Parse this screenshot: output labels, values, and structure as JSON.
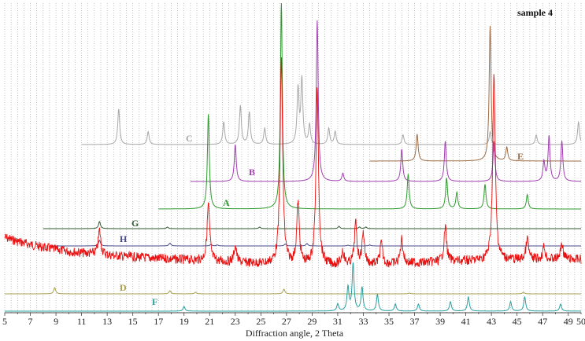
{
  "chart_data": {
    "type": "line",
    "title": "sample 4",
    "xlabel": "Diffraction angle, 2 Theta",
    "ylabel": "",
    "xlim": [
      5,
      50
    ],
    "xticks": [
      5,
      7,
      9,
      11,
      13,
      15,
      17,
      19,
      21,
      23,
      25,
      27,
      29,
      31,
      33,
      35,
      37,
      39,
      41,
      43,
      45,
      47,
      49,
      50
    ],
    "grid": "vertical dotted gridlines every 0.5 degree",
    "series": [
      {
        "name": "C",
        "color": "#a8a8a8",
        "x_range": [
          11,
          50
        ],
        "peaks": [
          [
            13.9,
            0.55
          ],
          [
            16.2,
            0.2
          ],
          [
            22.1,
            0.35
          ],
          [
            23.4,
            0.6
          ],
          [
            24.1,
            0.5
          ],
          [
            25.3,
            0.25
          ],
          [
            27.9,
            0.85
          ],
          [
            28.2,
            1.0
          ],
          [
            28.8,
            0.3
          ],
          [
            30.3,
            0.25
          ],
          [
            30.8,
            0.2
          ],
          [
            36.1,
            0.15
          ],
          [
            42.9,
            0.2
          ],
          [
            46.5,
            0.15
          ],
          [
            49.8,
            0.35
          ]
        ]
      },
      {
        "name": "E",
        "color": "#9b6b45",
        "x_range": [
          33.5,
          50
        ],
        "peaks": [
          [
            37.2,
            0.2
          ],
          [
            42.9,
            1.0
          ],
          [
            44.2,
            0.1
          ]
        ]
      },
      {
        "name": "B",
        "color": "#a040b0",
        "x_range": [
          19.5,
          50
        ],
        "peaks": [
          [
            23.0,
            0.23
          ],
          [
            29.4,
            1.0
          ],
          [
            31.4,
            0.05
          ],
          [
            36.0,
            0.2
          ],
          [
            39.4,
            0.25
          ],
          [
            43.2,
            0.25
          ],
          [
            47.1,
            0.12
          ],
          [
            47.5,
            0.28
          ],
          [
            48.5,
            0.25
          ]
        ]
      },
      {
        "name": "A",
        "color": "#2e9a2e",
        "x_range": [
          17,
          50
        ],
        "peaks": [
          [
            20.9,
            0.46
          ],
          [
            26.6,
            1.0
          ],
          [
            36.5,
            0.17
          ],
          [
            39.5,
            0.15
          ],
          [
            40.3,
            0.08
          ],
          [
            42.5,
            0.12
          ],
          [
            45.8,
            0.07
          ]
        ]
      },
      {
        "name": "G",
        "color": "#2f5a2f",
        "x_range": [
          8,
          50
        ],
        "peaks": [
          [
            12.4,
            0.45
          ],
          [
            17.7,
            0.1
          ],
          [
            24.9,
            0.1
          ],
          [
            31.1,
            0.15
          ],
          [
            32.7,
            0.1
          ],
          [
            33.2,
            0.1
          ]
        ]
      },
      {
        "name": "H",
        "color": "#4a4a8e",
        "x_range": [
          8.5,
          50
        ],
        "peaks": [
          [
            12.4,
            0.6
          ],
          [
            17.9,
            0.3
          ],
          [
            21.1,
            0.15
          ],
          [
            21.6,
            0.1
          ],
          [
            26.9,
            0.2
          ],
          [
            28.6,
            0.25
          ],
          [
            31.8,
            0.08
          ],
          [
            33.5,
            0.1
          ]
        ]
      },
      {
        "name": "sample 4",
        "color": "#e81010",
        "x_range": [
          5,
          50
        ],
        "peaks": [
          [
            12.4,
            0.12
          ],
          [
            20.9,
            0.28
          ],
          [
            23.0,
            0.08
          ],
          [
            26.6,
            1.0
          ],
          [
            27.9,
            0.3
          ],
          [
            29.4,
            0.85
          ],
          [
            31.4,
            0.07
          ],
          [
            32.4,
            0.2
          ],
          [
            33.0,
            0.15
          ],
          [
            34.4,
            0.1
          ],
          [
            36.0,
            0.12
          ],
          [
            39.4,
            0.17
          ],
          [
            43.2,
            0.9
          ],
          [
            45.8,
            0.1
          ],
          [
            47.1,
            0.06
          ],
          [
            48.5,
            0.08
          ]
        ]
      },
      {
        "name": "D",
        "color": "#a8a050",
        "x_range": [
          5,
          50
        ],
        "peaks": [
          [
            8.9,
            0.4
          ],
          [
            17.9,
            0.2
          ],
          [
            19.9,
            0.1
          ],
          [
            26.8,
            0.3
          ],
          [
            36.6,
            0.05
          ],
          [
            45.5,
            0.1
          ]
        ]
      },
      {
        "name": "F",
        "color": "#2aa0a0",
        "x_range": [
          5,
          50
        ],
        "peaks": [
          [
            19.0,
            0.1
          ],
          [
            31.0,
            0.15
          ],
          [
            31.8,
            0.5
          ],
          [
            32.2,
            1.0
          ],
          [
            32.9,
            0.5
          ],
          [
            34.1,
            0.35
          ],
          [
            35.5,
            0.15
          ],
          [
            37.3,
            0.15
          ],
          [
            39.8,
            0.2
          ],
          [
            41.2,
            0.3
          ],
          [
            44.5,
            0.2
          ],
          [
            45.6,
            0.3
          ],
          [
            48.4,
            0.15
          ]
        ]
      }
    ]
  }
}
